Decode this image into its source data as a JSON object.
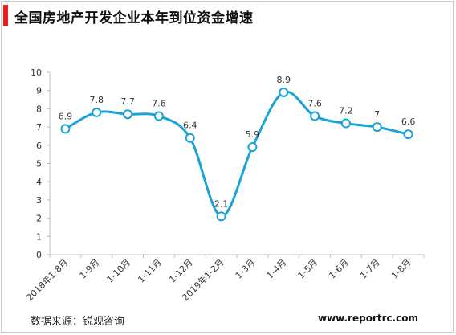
{
  "header": {
    "title": "全国房地产开发企业本年到位资金增速"
  },
  "footer": {
    "source": "数据来源：锐观咨询",
    "url": "www.reportrc.com"
  },
  "colors": {
    "accent": "#e02020",
    "line": "#1aa3d6",
    "axis": "#bfbfbf",
    "marker_fill": "#ffffff"
  },
  "chart_data": {
    "type": "line",
    "smooth": true,
    "markers": "hollow-circle",
    "categories": [
      "2018年1-8月",
      "1-9月",
      "1-10月",
      "1-11月",
      "1-12月",
      "2019年1-2月",
      "1-3月",
      "1-4月",
      "1-5月",
      "1-6月",
      "1-7月",
      "1-8月"
    ],
    "values": [
      6.9,
      7.8,
      7.7,
      7.6,
      6.4,
      2.1,
      5.9,
      8.9,
      7.6,
      7.2,
      7,
      6.6
    ],
    "value_labels": [
      "6.9",
      "7.8",
      "7.7",
      "7.6",
      "6.4",
      "2.1",
      "5.9",
      "8.9",
      "7.6",
      "7.2",
      "7",
      "6.6"
    ],
    "ylim": [
      0,
      10
    ],
    "yticks": [
      "0",
      "1",
      "2",
      "3",
      "4",
      "5",
      "6",
      "7",
      "8",
      "9",
      "10"
    ],
    "grid": false,
    "legend": "none",
    "xlabel": "",
    "ylabel": ""
  }
}
